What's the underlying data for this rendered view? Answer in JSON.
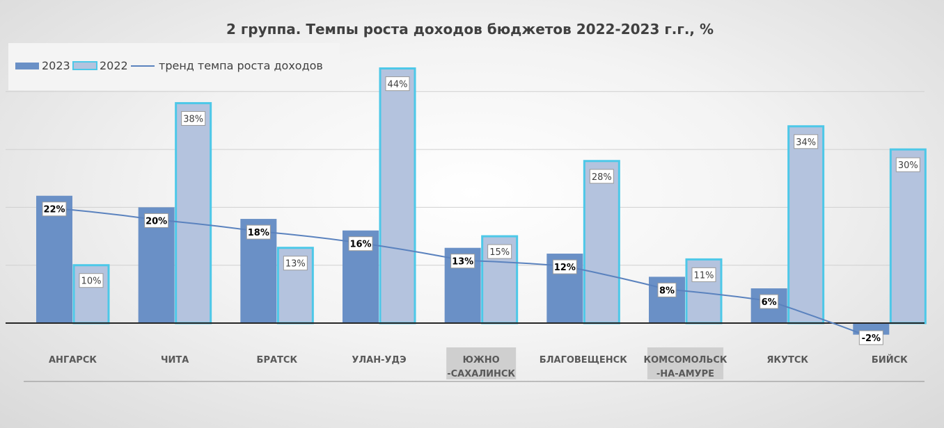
{
  "chart_data": {
    "type": "bar",
    "title": "2 группа. Темпы роста доходов бюджетов 2022-2023 г.г., %",
    "categories": [
      [
        "АНГАРСК"
      ],
      [
        "ЧИТА"
      ],
      [
        "БРАТСК"
      ],
      [
        "УЛАН-УДЭ"
      ],
      [
        "ЮЖНО",
        "-САХАЛИНСК"
      ],
      [
        "БЛАГОВЕЩЕНСК"
      ],
      [
        "КОМСОМОЛЬСК",
        "-НА-АМУРЕ"
      ],
      [
        "ЯКУТСК"
      ],
      [
        "БИЙСК"
      ]
    ],
    "series": [
      {
        "name": "2023",
        "values": [
          22,
          20,
          18,
          16,
          13,
          12,
          8,
          6,
          -2
        ],
        "labels": [
          "22%",
          "20%",
          "18%",
          "16%",
          "13%",
          "12%",
          "8%",
          "6%",
          "-2%"
        ],
        "color": "#6a90c6"
      },
      {
        "name": "2022",
        "values": [
          10,
          38,
          13,
          44,
          15,
          28,
          11,
          34,
          30
        ],
        "labels": [
          "10%",
          "38%",
          "13%",
          "44%",
          "15%",
          "28%",
          "11%",
          "34%",
          "30%"
        ],
        "color": "#b4c3de",
        "border": "#4dc8e8"
      }
    ],
    "trend": {
      "name": "тренд темпа роста доходов",
      "color": "#5a82be"
    },
    "ylim": [
      -10,
      50
    ],
    "grid": true,
    "legend_position": "top-left"
  }
}
